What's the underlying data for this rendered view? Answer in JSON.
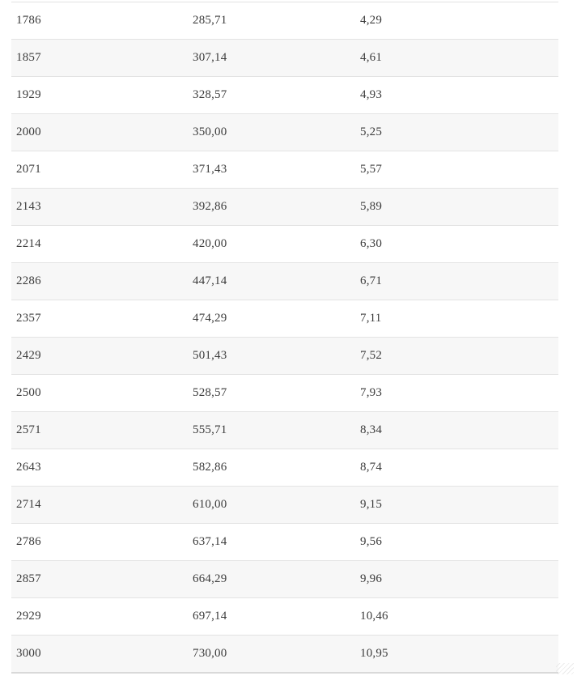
{
  "page": {
    "background_color": "#ffffff"
  },
  "table": {
    "stripe_color": "#f7f7f7",
    "row_border_color": "#e3e3e3",
    "bottom_border_color": "#d9d9d9",
    "text_color": "#3c3c3c",
    "rows": [
      [
        "1786",
        "285,71",
        "4,29"
      ],
      [
        "1857",
        "307,14",
        "4,61"
      ],
      [
        "1929",
        "328,57",
        "4,93"
      ],
      [
        "2000",
        "350,00",
        "5,25"
      ],
      [
        "2071",
        "371,43",
        "5,57"
      ],
      [
        "2143",
        "392,86",
        "5,89"
      ],
      [
        "2214",
        "420,00",
        "6,30"
      ],
      [
        "2286",
        "447,14",
        "6,71"
      ],
      [
        "2357",
        "474,29",
        "7,11"
      ],
      [
        "2429",
        "501,43",
        "7,52"
      ],
      [
        "2500",
        "528,57",
        "7,93"
      ],
      [
        "2571",
        "555,71",
        "8,34"
      ],
      [
        "2643",
        "582,86",
        "8,74"
      ],
      [
        "2714",
        "610,00",
        "9,15"
      ],
      [
        "2786",
        "637,14",
        "9,56"
      ],
      [
        "2857",
        "664,29",
        "9,96"
      ],
      [
        "2929",
        "697,14",
        "10,46"
      ],
      [
        "3000",
        "730,00",
        "10,95"
      ]
    ]
  }
}
